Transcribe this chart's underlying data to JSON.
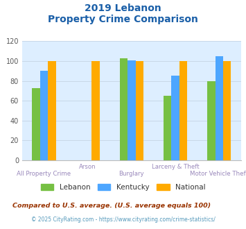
{
  "title_line1": "2019 Lebanon",
  "title_line2": "Property Crime Comparison",
  "categories": [
    "All Property Crime",
    "Arson",
    "Burglary",
    "Larceny & Theft",
    "Motor Vehicle Theft"
  ],
  "series": {
    "Lebanon": [
      73,
      null,
      103,
      65,
      80
    ],
    "Kentucky": [
      90,
      null,
      101,
      85,
      105
    ],
    "National": [
      100,
      100,
      100,
      100,
      100
    ]
  },
  "colors": {
    "Lebanon": "#76c043",
    "Kentucky": "#4da6ff",
    "National": "#ffaa00"
  },
  "ylim": [
    0,
    120
  ],
  "yticks": [
    0,
    20,
    40,
    60,
    80,
    100,
    120
  ],
  "plot_bg_color": "#ddeeff",
  "title_color": "#1a5fa8",
  "xlabel_color": "#9988bb",
  "legend_text_color": "#333333",
  "footnote1": "Compared to U.S. average. (U.S. average equals 100)",
  "footnote2": "© 2025 CityRating.com - https://www.cityrating.com/crime-statistics/",
  "footnote1_color": "#993300",
  "footnote2_color": "#5599bb",
  "grid_color": "#c8d8e8",
  "bar_width": 0.18,
  "label_row1": [
    1,
    3
  ],
  "label_row2": [
    0,
    2,
    4
  ]
}
